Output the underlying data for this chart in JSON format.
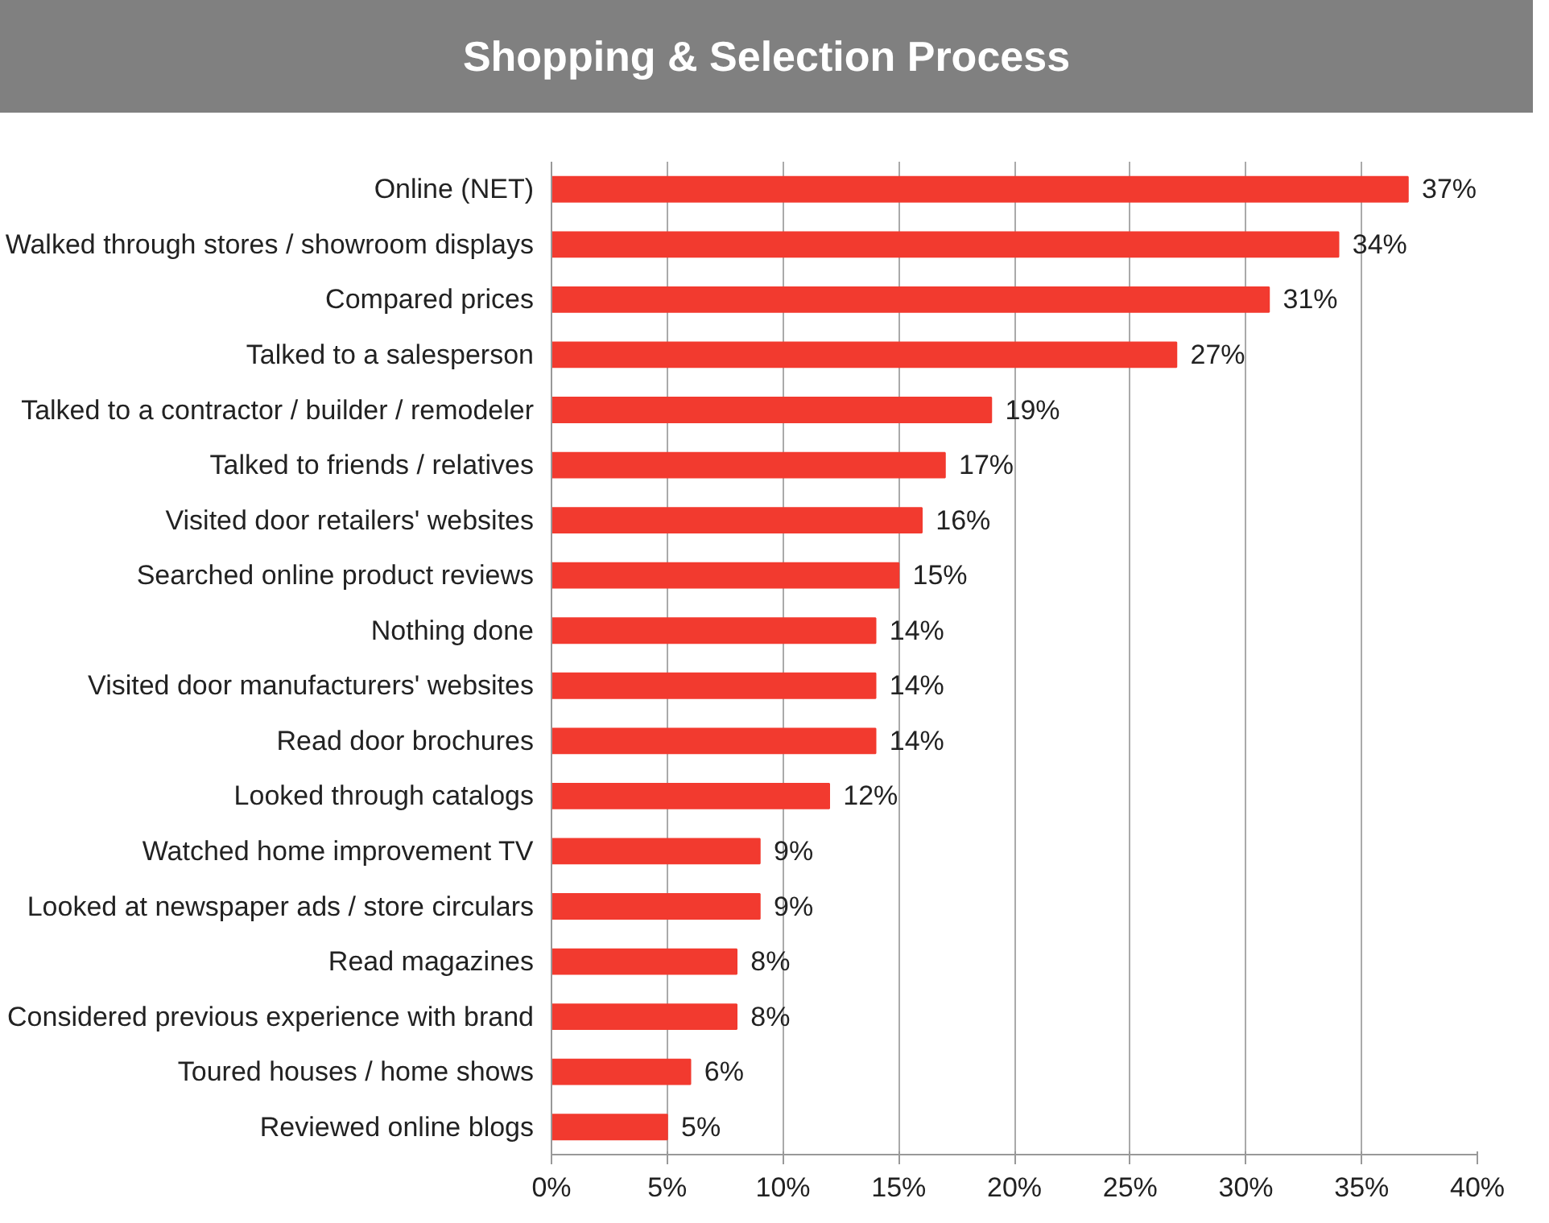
{
  "chart_data": {
    "type": "bar",
    "orientation": "horizontal",
    "title": "Shopping & Selection Process",
    "categories": [
      "Online (NET)",
      "Walked through stores / showroom displays",
      "Compared prices",
      "Talked to a salesperson",
      "Talked to a contractor / builder / remodeler",
      "Talked to friends / relatives",
      "Visited door retailers' websites",
      "Searched online product reviews",
      "Nothing done",
      "Visited door manufacturers' websites",
      "Read door brochures",
      "Looked through catalogs",
      "Watched home improvement TV",
      "Looked at newspaper ads / store circulars",
      "Read magazines",
      "Considered previous experience with brand",
      "Toured houses / home shows",
      "Reviewed online blogs"
    ],
    "values": [
      37,
      34,
      31,
      27,
      19,
      17,
      16,
      15,
      14,
      14,
      14,
      12,
      9,
      9,
      8,
      8,
      6,
      5
    ],
    "value_labels": [
      "37%",
      "34%",
      "31%",
      "27%",
      "19%",
      "17%",
      "16%",
      "15%",
      "14%",
      "14%",
      "14%",
      "12%",
      "9%",
      "9%",
      "8%",
      "8%",
      "6%",
      "5%"
    ],
    "color": "#f23a2f",
    "xlim": [
      0,
      40
    ],
    "xticks": [
      {
        "value": 0,
        "label": "0%"
      },
      {
        "value": 5,
        "label": "5%"
      },
      {
        "value": 10,
        "label": "10%"
      },
      {
        "value": 15,
        "label": "15%"
      },
      {
        "value": 20,
        "label": "20%"
      },
      {
        "value": 25,
        "label": "25%"
      },
      {
        "value": 30,
        "label": "30%"
      },
      {
        "value": 35,
        "label": "35%"
      },
      {
        "value": 40,
        "label": "40%"
      }
    ],
    "grid": "x"
  }
}
